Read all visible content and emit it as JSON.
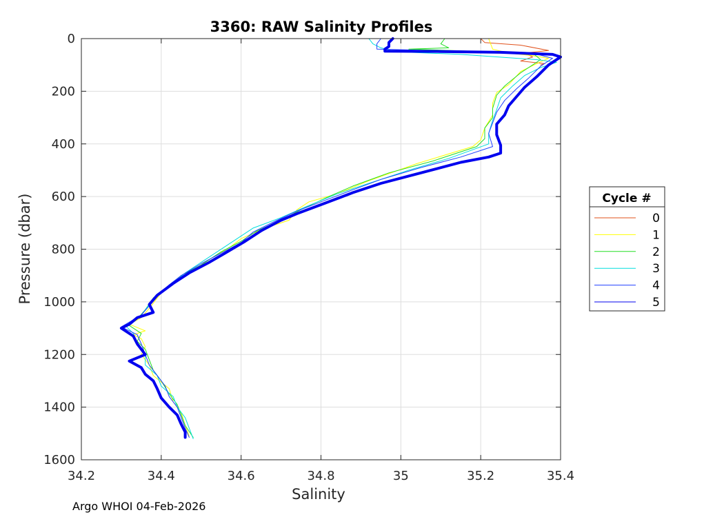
{
  "footer": "Argo WHOI 04-Feb-2026",
  "chart_data": {
    "type": "line",
    "title": "3360: RAW Salinity Profiles",
    "xlabel": "Salinity",
    "ylabel": "Pressure (dbar)",
    "xlim": [
      34.2,
      35.4
    ],
    "ylim": [
      0,
      1600
    ],
    "y_reversed": true,
    "grid": true,
    "xticks": [
      34.2,
      34.4,
      34.6,
      34.8,
      35,
      35.2,
      35.4
    ],
    "xtick_labels": [
      "34.2",
      "34.4",
      "34.6",
      "34.8",
      "35",
      "35.2",
      "35.4"
    ],
    "yticks": [
      0,
      200,
      400,
      600,
      800,
      1000,
      1200,
      1400,
      1600
    ],
    "ytick_labels": [
      "0",
      "200",
      "400",
      "600",
      "800",
      "1000",
      "1200",
      "1400",
      "1600"
    ],
    "legend": {
      "title": "Cycle #",
      "placement": "right"
    },
    "series": [
      {
        "name": "0",
        "color": "#e0501a",
        "width": 1,
        "points": [
          [
            35.2,
            0
          ],
          [
            35.21,
            15
          ],
          [
            35.3,
            25
          ],
          [
            35.37,
            45
          ],
          [
            35.31,
            55
          ],
          [
            35.33,
            70
          ],
          [
            35.3,
            85
          ],
          [
            35.36,
            95
          ],
          [
            35.35,
            100
          ]
        ]
      },
      {
        "name": "1",
        "color": "#ffff00",
        "width": 1,
        "points": [
          [
            35.22,
            0
          ],
          [
            35.23,
            40
          ],
          [
            35.27,
            55
          ],
          [
            35.33,
            65
          ],
          [
            35.37,
            75
          ],
          [
            35.34,
            95
          ],
          [
            35.3,
            125
          ],
          [
            35.27,
            175
          ],
          [
            35.24,
            205
          ],
          [
            35.23,
            245
          ],
          [
            35.23,
            290
          ],
          [
            35.21,
            340
          ],
          [
            35.2,
            385
          ],
          [
            35.18,
            410
          ],
          [
            35.04,
            475
          ],
          [
            34.92,
            540
          ],
          [
            34.84,
            590
          ],
          [
            34.77,
            620
          ],
          [
            34.74,
            650
          ],
          [
            34.72,
            690
          ],
          [
            34.66,
            720
          ],
          [
            34.6,
            760
          ],
          [
            34.57,
            795
          ],
          [
            34.53,
            830
          ],
          [
            34.49,
            870
          ],
          [
            34.45,
            910
          ],
          [
            34.41,
            950
          ],
          [
            34.39,
            985
          ],
          [
            34.37,
            1025
          ],
          [
            34.35,
            1060
          ],
          [
            34.32,
            1085
          ],
          [
            34.36,
            1110
          ],
          [
            34.33,
            1125
          ],
          [
            34.35,
            1140
          ],
          [
            34.36,
            1170
          ],
          [
            34.35,
            1200
          ],
          [
            34.37,
            1240
          ],
          [
            34.38,
            1280
          ],
          [
            34.42,
            1330
          ],
          [
            34.43,
            1380
          ],
          [
            34.45,
            1420
          ],
          [
            34.46,
            1470
          ],
          [
            34.47,
            1510
          ]
        ]
      },
      {
        "name": "2",
        "color": "#22dd22",
        "width": 1,
        "points": [
          [
            35.11,
            0
          ],
          [
            35.1,
            20
          ],
          [
            35.12,
            35
          ],
          [
            35.02,
            40
          ],
          [
            35.33,
            55
          ],
          [
            35.35,
            80
          ],
          [
            35.33,
            100
          ],
          [
            35.3,
            130
          ],
          [
            35.26,
            180
          ],
          [
            35.24,
            215
          ],
          [
            35.23,
            265
          ],
          [
            35.23,
            300
          ],
          [
            35.21,
            340
          ],
          [
            35.21,
            380
          ],
          [
            35.19,
            410
          ],
          [
            35.08,
            465
          ],
          [
            34.97,
            510
          ],
          [
            34.88,
            560
          ],
          [
            34.82,
            600
          ],
          [
            34.75,
            650
          ],
          [
            34.7,
            690
          ],
          [
            34.64,
            730
          ],
          [
            34.6,
            770
          ],
          [
            34.55,
            810
          ],
          [
            34.5,
            860
          ],
          [
            34.45,
            900
          ],
          [
            34.42,
            940
          ],
          [
            34.38,
            985
          ],
          [
            34.36,
            1030
          ],
          [
            34.34,
            1065
          ],
          [
            34.32,
            1090
          ],
          [
            34.35,
            1120
          ],
          [
            34.34,
            1150
          ],
          [
            34.36,
            1180
          ],
          [
            34.37,
            1220
          ],
          [
            34.38,
            1260
          ],
          [
            34.4,
            1300
          ],
          [
            34.42,
            1350
          ],
          [
            34.44,
            1390
          ],
          [
            34.45,
            1430
          ],
          [
            34.46,
            1470
          ],
          [
            34.48,
            1515
          ]
        ]
      },
      {
        "name": "3",
        "color": "#00dddd",
        "width": 1,
        "points": [
          [
            34.92,
            0
          ],
          [
            34.93,
            20
          ],
          [
            34.95,
            35
          ],
          [
            34.99,
            50
          ],
          [
            35.15,
            60
          ],
          [
            35.34,
            80
          ],
          [
            35.39,
            90
          ],
          [
            35.35,
            110
          ],
          [
            35.31,
            140
          ],
          [
            35.28,
            180
          ],
          [
            35.25,
            225
          ],
          [
            35.24,
            270
          ],
          [
            35.23,
            310
          ],
          [
            35.22,
            360
          ],
          [
            35.22,
            400
          ],
          [
            35.12,
            455
          ],
          [
            35.02,
            500
          ],
          [
            34.92,
            550
          ],
          [
            34.84,
            590
          ],
          [
            34.76,
            640
          ],
          [
            34.7,
            680
          ],
          [
            34.63,
            720
          ],
          [
            34.59,
            760
          ],
          [
            34.54,
            810
          ],
          [
            34.5,
            850
          ],
          [
            34.46,
            890
          ],
          [
            34.43,
            930
          ],
          [
            34.39,
            970
          ],
          [
            34.37,
            1010
          ],
          [
            34.35,
            1050
          ],
          [
            34.31,
            1090
          ],
          [
            34.33,
            1120
          ],
          [
            34.34,
            1160
          ],
          [
            34.36,
            1200
          ],
          [
            34.36,
            1240
          ],
          [
            34.39,
            1280
          ],
          [
            34.4,
            1320
          ],
          [
            34.43,
            1360
          ],
          [
            34.44,
            1400
          ],
          [
            34.46,
            1440
          ],
          [
            34.47,
            1480
          ],
          [
            34.48,
            1520
          ]
        ]
      },
      {
        "name": "4",
        "color": "#1f3fff",
        "width": 1,
        "points": [
          [
            34.95,
            0
          ],
          [
            34.94,
            20
          ],
          [
            34.94,
            40
          ],
          [
            35.33,
            55
          ],
          [
            35.38,
            75
          ],
          [
            35.35,
            105
          ],
          [
            35.32,
            150
          ],
          [
            35.29,
            190
          ],
          [
            35.26,
            235
          ],
          [
            35.24,
            280
          ],
          [
            35.23,
            320
          ],
          [
            35.22,
            360
          ],
          [
            35.23,
            410
          ],
          [
            35.15,
            450
          ],
          [
            35.05,
            490
          ],
          [
            34.95,
            535
          ],
          [
            34.87,
            580
          ],
          [
            34.8,
            620
          ],
          [
            34.74,
            655
          ],
          [
            34.69,
            690
          ],
          [
            34.63,
            735
          ],
          [
            34.6,
            775
          ],
          [
            34.55,
            815
          ],
          [
            34.5,
            855
          ],
          [
            34.45,
            900
          ],
          [
            34.42,
            935
          ],
          [
            34.39,
            975
          ],
          [
            34.37,
            1015
          ],
          [
            34.35,
            1050
          ],
          [
            34.3,
            1095
          ],
          [
            34.34,
            1125
          ],
          [
            34.35,
            1160
          ],
          [
            34.36,
            1200
          ],
          [
            34.37,
            1240
          ],
          [
            34.39,
            1280
          ],
          [
            34.41,
            1320
          ],
          [
            34.42,
            1360
          ],
          [
            34.44,
            1400
          ],
          [
            34.45,
            1440
          ],
          [
            34.46,
            1480
          ],
          [
            34.47,
            1515
          ]
        ]
      },
      {
        "name": "5",
        "color": "#0000ee",
        "width": 4,
        "points": [
          [
            34.98,
            0
          ],
          [
            34.97,
            15
          ],
          [
            34.97,
            30
          ],
          [
            34.96,
            40
          ],
          [
            34.96,
            48
          ],
          [
            35.1,
            49
          ],
          [
            35.25,
            52
          ],
          [
            35.38,
            60
          ],
          [
            35.4,
            70
          ],
          [
            35.37,
            100
          ],
          [
            35.34,
            145
          ],
          [
            35.31,
            185
          ],
          [
            35.29,
            220
          ],
          [
            35.27,
            255
          ],
          [
            35.26,
            290
          ],
          [
            35.24,
            325
          ],
          [
            35.24,
            365
          ],
          [
            35.25,
            405
          ],
          [
            35.25,
            435
          ],
          [
            35.22,
            450
          ],
          [
            35.15,
            470
          ],
          [
            35.05,
            510
          ],
          [
            34.95,
            550
          ],
          [
            34.88,
            585
          ],
          [
            34.81,
            625
          ],
          [
            34.74,
            665
          ],
          [
            34.7,
            690
          ],
          [
            34.65,
            730
          ],
          [
            34.61,
            770
          ],
          [
            34.56,
            815
          ],
          [
            34.52,
            850
          ],
          [
            34.47,
            890
          ],
          [
            34.43,
            930
          ],
          [
            34.39,
            975
          ],
          [
            34.37,
            1010
          ],
          [
            34.38,
            1040
          ],
          [
            34.34,
            1060
          ],
          [
            34.32,
            1085
          ],
          [
            34.3,
            1100
          ],
          [
            34.33,
            1130
          ],
          [
            34.34,
            1160
          ],
          [
            34.36,
            1200
          ],
          [
            34.32,
            1225
          ],
          [
            34.35,
            1250
          ],
          [
            34.36,
            1275
          ],
          [
            34.38,
            1300
          ],
          [
            34.39,
            1330
          ],
          [
            34.4,
            1365
          ],
          [
            34.42,
            1400
          ],
          [
            34.44,
            1430
          ],
          [
            34.45,
            1465
          ],
          [
            34.46,
            1495
          ],
          [
            34.46,
            1515
          ]
        ]
      }
    ]
  }
}
